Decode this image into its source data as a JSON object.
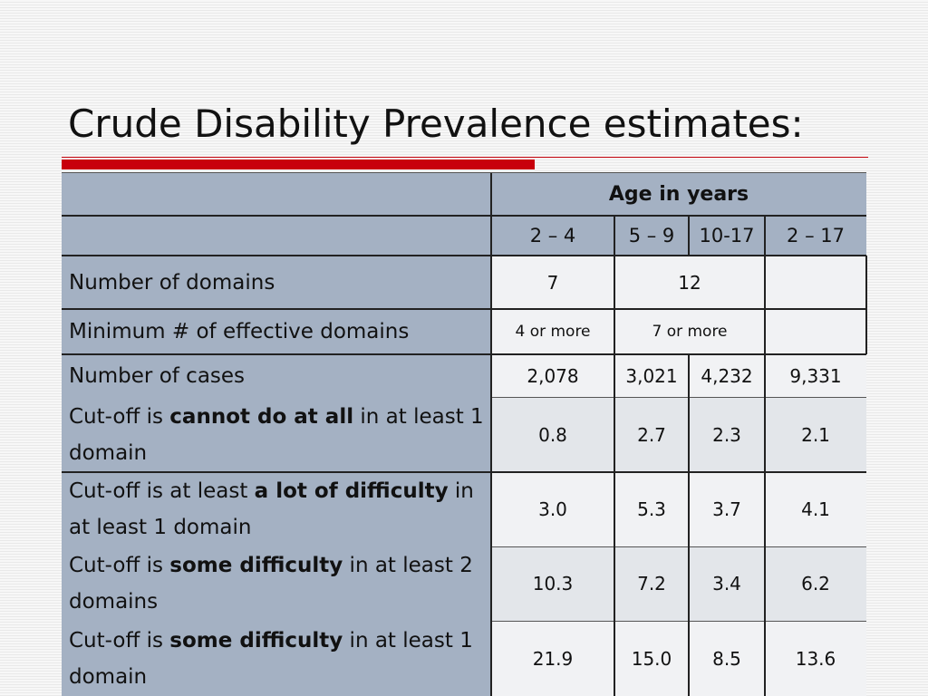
{
  "slide": {
    "title": "Crude Disability Prevalence estimates:"
  },
  "table": {
    "group_header": "Age in years",
    "columns": [
      "2 – 4",
      "5 – 9",
      "10-17",
      "2 – 17"
    ],
    "rows": [
      {
        "label": "Number of domains",
        "values": [
          "7",
          "12",
          ""
        ]
      },
      {
        "label": "Minimum # of effective domains",
        "values": [
          "4 or more",
          "7 or more",
          ""
        ]
      },
      {
        "label": "Number of cases",
        "values": [
          "2,078",
          "3,021",
          "4,232",
          "9,331"
        ]
      },
      {
        "label_parts": [
          "Cut-off is ",
          "cannot do at all",
          " in at least 1 domain"
        ],
        "values": [
          "0.8",
          "2.7",
          "2.3",
          "2.1"
        ]
      },
      {
        "label_parts": [
          "Cut-off is at least ",
          "a lot of difficulty",
          " in at least 1 domain"
        ],
        "values": [
          "3.0",
          "5.3",
          "3.7",
          "4.1"
        ]
      },
      {
        "label_parts": [
          "Cut-off is ",
          "some difficulty",
          " in at least 2 domains"
        ],
        "values": [
          "10.3",
          "7.2",
          "3.4",
          "6.2"
        ]
      },
      {
        "label_parts": [
          "Cut-off is ",
          "some difficulty",
          " in at least 1 domain"
        ],
        "values": [
          "21.9",
          "15.0",
          "8.5",
          "13.6"
        ]
      }
    ]
  }
}
